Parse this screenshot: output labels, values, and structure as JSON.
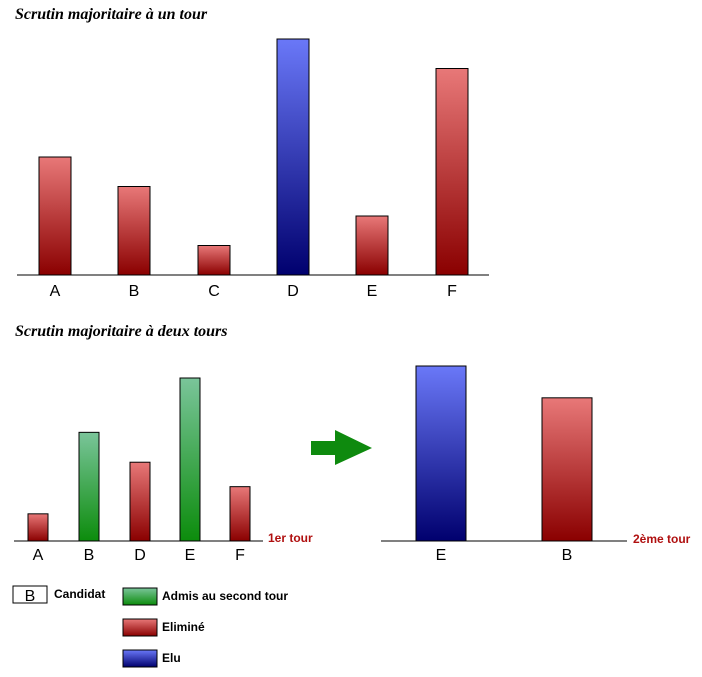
{
  "chart_data": [
    {
      "type": "bar",
      "title": "Scrutin majoritaire à un tour",
      "categories": [
        "A",
        "B",
        "C",
        "D",
        "E",
        "F"
      ],
      "values": [
        40,
        30,
        10,
        80,
        20,
        70
      ],
      "status": [
        "elimine",
        "elimine",
        "elimine",
        "elu",
        "elimine",
        "elimine"
      ],
      "ylim": [
        0,
        80
      ],
      "xlabel": "",
      "ylabel": ""
    },
    {
      "type": "bar",
      "title": "Scrutin majoritaire à deux tours",
      "round_label": "1er tour",
      "categories": [
        "A",
        "B",
        "D",
        "E",
        "F"
      ],
      "values": [
        10,
        40,
        29,
        60,
        20
      ],
      "status": [
        "elimine",
        "admis",
        "elimine",
        "admis",
        "elimine"
      ],
      "ylim": [
        0,
        60
      ],
      "xlabel": "",
      "ylabel": ""
    },
    {
      "type": "bar",
      "round_label": "2ème tour",
      "categories": [
        "E",
        "B"
      ],
      "values": [
        55,
        45
      ],
      "status": [
        "elu",
        "elimine"
      ],
      "ylim": [
        0,
        55
      ],
      "xlabel": "",
      "ylabel": ""
    }
  ],
  "legend": {
    "candidate_letter": "B",
    "candidate_label": "Candidat",
    "items": [
      {
        "key": "admis",
        "label": "Admis au second tour"
      },
      {
        "key": "elimine",
        "label": "Eliminé"
      },
      {
        "key": "elu",
        "label": "Elu"
      }
    ]
  },
  "colors": {
    "admis": [
      "#7ac59a",
      "#0c8c0c"
    ],
    "elimine": [
      "#e87878",
      "#8a0000"
    ],
    "elu": [
      "#6a78f8",
      "#00006e"
    ],
    "arrow": "#0e8a0e",
    "round_label": "#b01010"
  }
}
